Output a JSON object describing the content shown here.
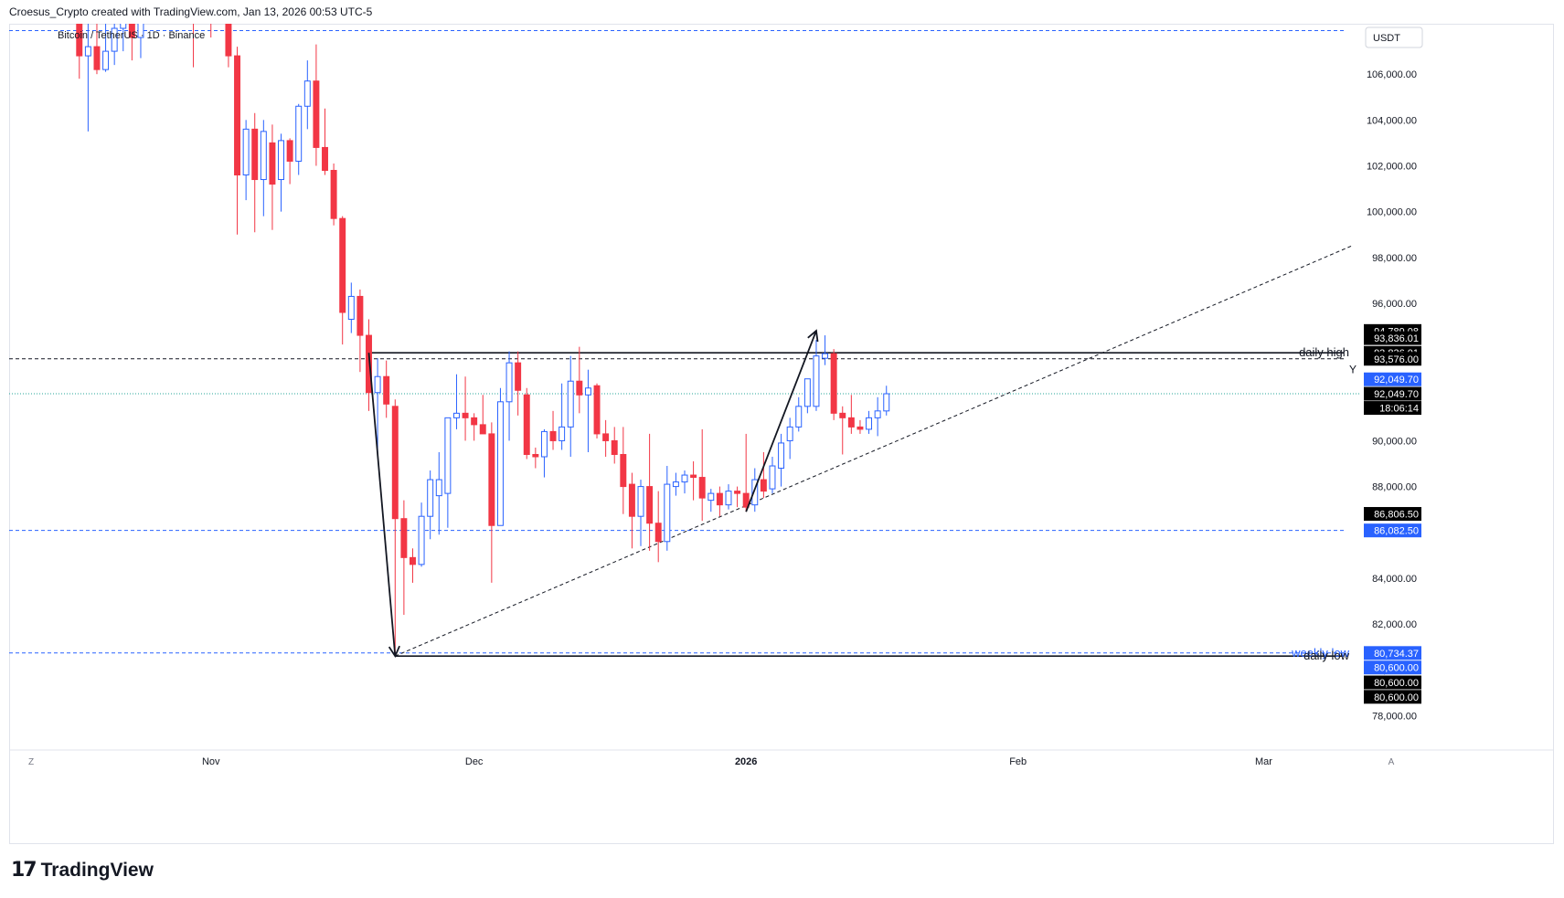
{
  "header": {
    "caption": "Croesus_Crypto created with TradingView.com, Jan 13, 2026 00:53 UTC-5"
  },
  "footer": {
    "brand": "TradingView",
    "logo_icon": "tradingview-logo-icon"
  },
  "chart_data": {
    "type": "candlestick",
    "symbol_label": "Bitcoin / TetherUS · 1D · Binance",
    "currency": "USDT",
    "ylim": [
      76500,
      108200
    ],
    "y_ticks": [
      78000,
      80000,
      82000,
      84000,
      86000,
      88000,
      90000,
      92000,
      94000,
      96000,
      98000,
      100000,
      102000,
      104000,
      106000
    ],
    "y_tick_labels": [
      "78,000.00",
      "80,000.00",
      "82,000.00",
      "84,000.00",
      "",
      "88,000.00",
      "90,000.00",
      "",
      "",
      "96,000.00",
      "98,000.00",
      "100,000.00",
      "102,000.00",
      "104,000.00",
      "106,000.00"
    ],
    "x_ticks": [
      {
        "label": "Nov",
        "day": 0
      },
      {
        "label": "Dec",
        "day": 30
      },
      {
        "label": "2026",
        "day": 61,
        "bold": true
      },
      {
        "label": "Feb",
        "day": 92
      },
      {
        "label": "Mar",
        "day": 120
      }
    ],
    "x_range_days": [
      -23,
      131
    ],
    "colors": {
      "up": "#2962ff",
      "up_fill": "#ffffff",
      "down": "#f23645",
      "down_fill": "#f23645",
      "price_line": "#26a69a",
      "level": "#2962ff"
    },
    "candles": [
      {
        "d": -15,
        "o": 108400,
        "h": 109800,
        "l": 105800,
        "c": 106800
      },
      {
        "d": -14,
        "o": 106800,
        "h": 108200,
        "l": 103500,
        "c": 107200
      },
      {
        "d": -13,
        "o": 107200,
        "h": 108600,
        "l": 106000,
        "c": 106200
      },
      {
        "d": -12,
        "o": 106200,
        "h": 108800,
        "l": 106100,
        "c": 107000
      },
      {
        "d": -11,
        "o": 107000,
        "h": 109200,
        "l": 106400,
        "c": 108000
      },
      {
        "d": -10,
        "o": 108000,
        "h": 109400,
        "l": 107000,
        "c": 108600
      },
      {
        "d": -9,
        "o": 108600,
        "h": 109000,
        "l": 106600,
        "c": 107600
      },
      {
        "d": -8,
        "o": 107600,
        "h": 109600,
        "l": 106700,
        "c": 108400
      },
      {
        "d": -2,
        "o": 110500,
        "h": 111000,
        "l": 106300,
        "c": 108300
      },
      {
        "d": 0,
        "o": 110200,
        "h": 110800,
        "l": 107600,
        "c": 108600
      },
      {
        "d": 2,
        "o": 109200,
        "h": 109600,
        "l": 106300,
        "c": 106800
      },
      {
        "d": 3,
        "o": 106800,
        "h": 107200,
        "l": 99000,
        "c": 101600
      },
      {
        "d": 4,
        "o": 101600,
        "h": 104000,
        "l": 100500,
        "c": 103600
      },
      {
        "d": 5,
        "o": 103600,
        "h": 104300,
        "l": 99100,
        "c": 101400
      },
      {
        "d": 6,
        "o": 101400,
        "h": 104000,
        "l": 99800,
        "c": 103500
      },
      {
        "d": 7,
        "o": 103000,
        "h": 103800,
        "l": 99200,
        "c": 101200
      },
      {
        "d": 8,
        "o": 101400,
        "h": 103400,
        "l": 100000,
        "c": 103100
      },
      {
        "d": 9,
        "o": 103100,
        "h": 103200,
        "l": 101200,
        "c": 102200
      },
      {
        "d": 10,
        "o": 102200,
        "h": 104700,
        "l": 101600,
        "c": 104600
      },
      {
        "d": 11,
        "o": 104600,
        "h": 106600,
        "l": 103600,
        "c": 105700
      },
      {
        "d": 12,
        "o": 105700,
        "h": 107300,
        "l": 102000,
        "c": 102800
      },
      {
        "d": 13,
        "o": 102800,
        "h": 104500,
        "l": 101600,
        "c": 101800
      },
      {
        "d": 14,
        "o": 101800,
        "h": 102100,
        "l": 99400,
        "c": 99700
      },
      {
        "d": 15,
        "o": 99700,
        "h": 99800,
        "l": 94200,
        "c": 95600
      },
      {
        "d": 16,
        "o": 95300,
        "h": 96900,
        "l": 94700,
        "c": 96300
      },
      {
        "d": 17,
        "o": 96300,
        "h": 96600,
        "l": 93000,
        "c": 94600
      },
      {
        "d": 18,
        "o": 94600,
        "h": 95300,
        "l": 91300,
        "c": 92100
      },
      {
        "d": 19,
        "o": 92100,
        "h": 93600,
        "l": 89300,
        "c": 92800
      },
      {
        "d": 20,
        "o": 92800,
        "h": 93500,
        "l": 91000,
        "c": 91600
      },
      {
        "d": 21,
        "o": 91500,
        "h": 91800,
        "l": 80600,
        "c": 86600
      },
      {
        "d": 22,
        "o": 86600,
        "h": 87400,
        "l": 82400,
        "c": 84900
      },
      {
        "d": 23,
        "o": 84900,
        "h": 85300,
        "l": 83800,
        "c": 84600
      },
      {
        "d": 24,
        "o": 84600,
        "h": 87300,
        "l": 84500,
        "c": 86700
      },
      {
        "d": 25,
        "o": 86700,
        "h": 88700,
        "l": 85700,
        "c": 88300
      },
      {
        "d": 26,
        "o": 87600,
        "h": 89500,
        "l": 85900,
        "c": 88300
      },
      {
        "d": 27,
        "o": 87700,
        "h": 90700,
        "l": 86200,
        "c": 91000
      },
      {
        "d": 28,
        "o": 91000,
        "h": 92900,
        "l": 90500,
        "c": 91200
      },
      {
        "d": 29,
        "o": 91200,
        "h": 92800,
        "l": 90000,
        "c": 91000
      },
      {
        "d": 30,
        "o": 91000,
        "h": 91200,
        "l": 90000,
        "c": 90700
      },
      {
        "d": 31,
        "o": 90700,
        "h": 92000,
        "l": 90300,
        "c": 90300
      },
      {
        "d": 32,
        "o": 90300,
        "h": 90800,
        "l": 83800,
        "c": 86300
      },
      {
        "d": 33,
        "o": 86300,
        "h": 92300,
        "l": 86300,
        "c": 91700
      },
      {
        "d": 34,
        "o": 91700,
        "h": 93900,
        "l": 90000,
        "c": 93400
      },
      {
        "d": 35,
        "o": 93400,
        "h": 93900,
        "l": 91100,
        "c": 92200
      },
      {
        "d": 36,
        "o": 92000,
        "h": 92300,
        "l": 89200,
        "c": 89400
      },
      {
        "d": 37,
        "o": 89400,
        "h": 89700,
        "l": 88800,
        "c": 89300
      },
      {
        "d": 38,
        "o": 89300,
        "h": 90500,
        "l": 88400,
        "c": 90400
      },
      {
        "d": 39,
        "o": 90400,
        "h": 91300,
        "l": 89600,
        "c": 90000
      },
      {
        "d": 40,
        "o": 90000,
        "h": 92500,
        "l": 89600,
        "c": 90600
      },
      {
        "d": 41,
        "o": 90600,
        "h": 93700,
        "l": 89300,
        "c": 92600
      },
      {
        "d": 42,
        "o": 92600,
        "h": 94100,
        "l": 91200,
        "c": 92000
      },
      {
        "d": 43,
        "o": 92000,
        "h": 93100,
        "l": 89500,
        "c": 92300
      },
      {
        "d": 44,
        "o": 92400,
        "h": 92500,
        "l": 90100,
        "c": 90300
      },
      {
        "d": 45,
        "o": 90300,
        "h": 90900,
        "l": 89300,
        "c": 90000
      },
      {
        "d": 46,
        "o": 90000,
        "h": 90600,
        "l": 89000,
        "c": 89400
      },
      {
        "d": 47,
        "o": 89400,
        "h": 90600,
        "l": 86800,
        "c": 88000
      },
      {
        "d": 48,
        "o": 88100,
        "h": 88600,
        "l": 85300,
        "c": 86700
      },
      {
        "d": 49,
        "o": 86700,
        "h": 88300,
        "l": 85400,
        "c": 88000
      },
      {
        "d": 50,
        "o": 88000,
        "h": 90300,
        "l": 85200,
        "c": 86400
      },
      {
        "d": 51,
        "o": 86400,
        "h": 87800,
        "l": 84700,
        "c": 85600
      },
      {
        "d": 52,
        "o": 85600,
        "h": 88900,
        "l": 85200,
        "c": 88100
      },
      {
        "d": 53,
        "o": 88000,
        "h": 88600,
        "l": 87600,
        "c": 88200
      },
      {
        "d": 54,
        "o": 88200,
        "h": 88700,
        "l": 87700,
        "c": 88500
      },
      {
        "d": 55,
        "o": 88500,
        "h": 89100,
        "l": 87400,
        "c": 88400
      },
      {
        "d": 56,
        "o": 88400,
        "h": 90500,
        "l": 86500,
        "c": 87500
      },
      {
        "d": 57,
        "o": 87400,
        "h": 87900,
        "l": 86900,
        "c": 87700
      },
      {
        "d": 58,
        "o": 87700,
        "h": 88000,
        "l": 86700,
        "c": 87200
      },
      {
        "d": 59,
        "o": 87200,
        "h": 88100,
        "l": 87000,
        "c": 87800
      },
      {
        "d": 60,
        "o": 87800,
        "h": 88000,
        "l": 87100,
        "c": 87700
      },
      {
        "d": 61,
        "o": 87700,
        "h": 90300,
        "l": 86900,
        "c": 87100
      },
      {
        "d": 62,
        "o": 87200,
        "h": 88800,
        "l": 86900,
        "c": 88300
      },
      {
        "d": 63,
        "o": 88300,
        "h": 89500,
        "l": 87500,
        "c": 87800
      },
      {
        "d": 64,
        "o": 87900,
        "h": 89300,
        "l": 87700,
        "c": 88900
      },
      {
        "d": 65,
        "o": 88800,
        "h": 90300,
        "l": 88000,
        "c": 89900
      },
      {
        "d": 66,
        "o": 90000,
        "h": 91000,
        "l": 89200,
        "c": 90600
      },
      {
        "d": 67,
        "o": 90600,
        "h": 91900,
        "l": 90400,
        "c": 91500
      },
      {
        "d": 68,
        "o": 91500,
        "h": 92700,
        "l": 91200,
        "c": 92700
      },
      {
        "d": 69,
        "o": 91500,
        "h": 94400,
        "l": 91300,
        "c": 93700
      },
      {
        "d": 70,
        "o": 93600,
        "h": 94600,
        "l": 93300,
        "c": 93800
      },
      {
        "d": 71,
        "o": 93800,
        "h": 94000,
        "l": 90900,
        "c": 91200
      },
      {
        "d": 72,
        "o": 91200,
        "h": 91500,
        "l": 89400,
        "c": 91000
      },
      {
        "d": 73,
        "o": 91000,
        "h": 92000,
        "l": 90300,
        "c": 90600
      },
      {
        "d": 74,
        "o": 90600,
        "h": 90900,
        "l": 90300,
        "c": 90500
      },
      {
        "d": 75,
        "o": 90500,
        "h": 91300,
        "l": 90300,
        "c": 91000
      },
      {
        "d": 76,
        "o": 91000,
        "h": 91900,
        "l": 90200,
        "c": 91300
      },
      {
        "d": 77,
        "o": 91300,
        "h": 92400,
        "l": 91100,
        "c": 92050
      }
    ],
    "levels": [
      {
        "name": "upper-blue-level",
        "value": 107900,
        "color": "#2962ff",
        "style": "dashed",
        "x_from_day": -23
      },
      {
        "name": "level-86082",
        "value": 86082.5,
        "color": "#2962ff",
        "style": "dashed",
        "x_from_day": -23
      },
      {
        "name": "weekly-low-level",
        "value": 80734.37,
        "color": "#2962ff",
        "style": "dashed",
        "x_from_day": -23
      },
      {
        "name": "level-93576",
        "value": 93576,
        "color": "#131722",
        "style": "dashed",
        "x_from_day": -23
      },
      {
        "name": "daily-high-line",
        "value": 93836.01,
        "color": "#131722",
        "style": "solid",
        "x_from_day": 18
      },
      {
        "name": "daily-low-line",
        "value": 80600,
        "color": "#131722",
        "style": "solid",
        "x_from_day": 21
      }
    ],
    "current_price": 92049.7,
    "annotations": [
      {
        "text": "daily high",
        "y": 93836.01
      },
      {
        "text": "Y",
        "y": 93100
      },
      {
        "text": "weekly low",
        "y": 80734.37,
        "overlaid_by": "daily low"
      },
      {
        "text": "daily low",
        "y": 80600
      }
    ],
    "arrows": [
      {
        "from": {
          "d": 18,
          "v": 93836
        },
        "to": {
          "d": 21,
          "v": 80600
        }
      },
      {
        "from": {
          "d": 61,
          "v": 86900
        },
        "to": {
          "d": 69,
          "v": 94800
        }
      }
    ],
    "trendline": {
      "from": {
        "d": 21,
        "v": 80600
      },
      "to": {
        "d": 130,
        "v": 98500
      }
    },
    "price_labels": [
      {
        "text": "94,789.08",
        "y": 94789.08,
        "bg": "#000000",
        "fg": "#ffffff"
      },
      {
        "text": "93,836.01",
        "y": 94480,
        "bg": "#000000",
        "fg": "#ffffff"
      },
      {
        "text": "93,836.01",
        "y": 93836.01,
        "bg": "#000000",
        "fg": "#ffffff"
      },
      {
        "text": "93,576.00",
        "y": 93576,
        "bg": "#000000",
        "fg": "#ffffff"
      },
      {
        "text": "92,049.70",
        "y": 92680,
        "bg": "#2962ff",
        "fg": "#ffffff"
      },
      {
        "text": "92,049.70",
        "y": 92049.7,
        "bg": "#000000",
        "fg": "#ffffff"
      },
      {
        "text": "18:06:14",
        "y": 91430,
        "bg": "#000000",
        "fg": "#ffffff"
      },
      {
        "text": "86,806.50",
        "y": 86806.5,
        "bg": "#000000",
        "fg": "#ffffff"
      },
      {
        "text": "86,082.50",
        "y": 86082.5,
        "bg": "#2962ff",
        "fg": "#ffffff"
      },
      {
        "text": "80,734.37",
        "y": 80734.37,
        "bg": "#2962ff",
        "fg": "#ffffff"
      },
      {
        "text": "80,600.00",
        "y": 80100,
        "bg": "#2962ff",
        "fg": "#ffffff"
      },
      {
        "text": "80,600.00",
        "y": 79450,
        "bg": "#000000",
        "fg": "#ffffff"
      },
      {
        "text": "80,600.00",
        "y": 78820,
        "bg": "#000000",
        "fg": "#ffffff"
      }
    ],
    "corner_left": "Z",
    "corner_right": "A"
  }
}
